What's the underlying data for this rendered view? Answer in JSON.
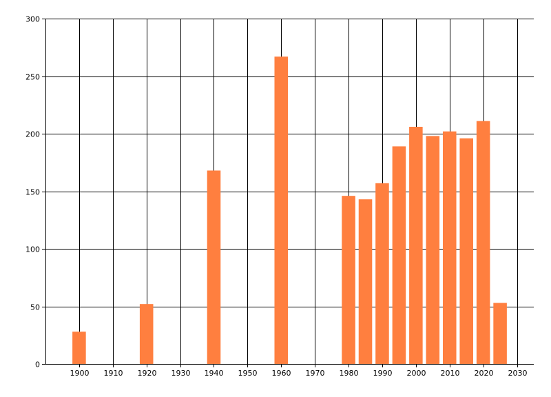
{
  "chart_data": {
    "type": "bar",
    "title": "",
    "xlabel": "",
    "ylabel": "",
    "x": [
      1900,
      1920,
      1940,
      1960,
      1980,
      1985,
      1990,
      1995,
      2000,
      2005,
      2010,
      2015,
      2020,
      2025
    ],
    "values": [
      28,
      52,
      168,
      267,
      146,
      143,
      157,
      189,
      206,
      198,
      202,
      196,
      211,
      53
    ],
    "xlim": [
      1890,
      2035
    ],
    "ylim": [
      0,
      300
    ],
    "xticks": [
      1900,
      1910,
      1920,
      1930,
      1940,
      1950,
      1960,
      1970,
      1980,
      1990,
      2000,
      2010,
      2020,
      2030
    ],
    "yticks": [
      0,
      50,
      100,
      150,
      200,
      250,
      300
    ],
    "grid": true,
    "legend": "none",
    "bar_color": "#ff7f3f",
    "grid_color": "#000000"
  }
}
